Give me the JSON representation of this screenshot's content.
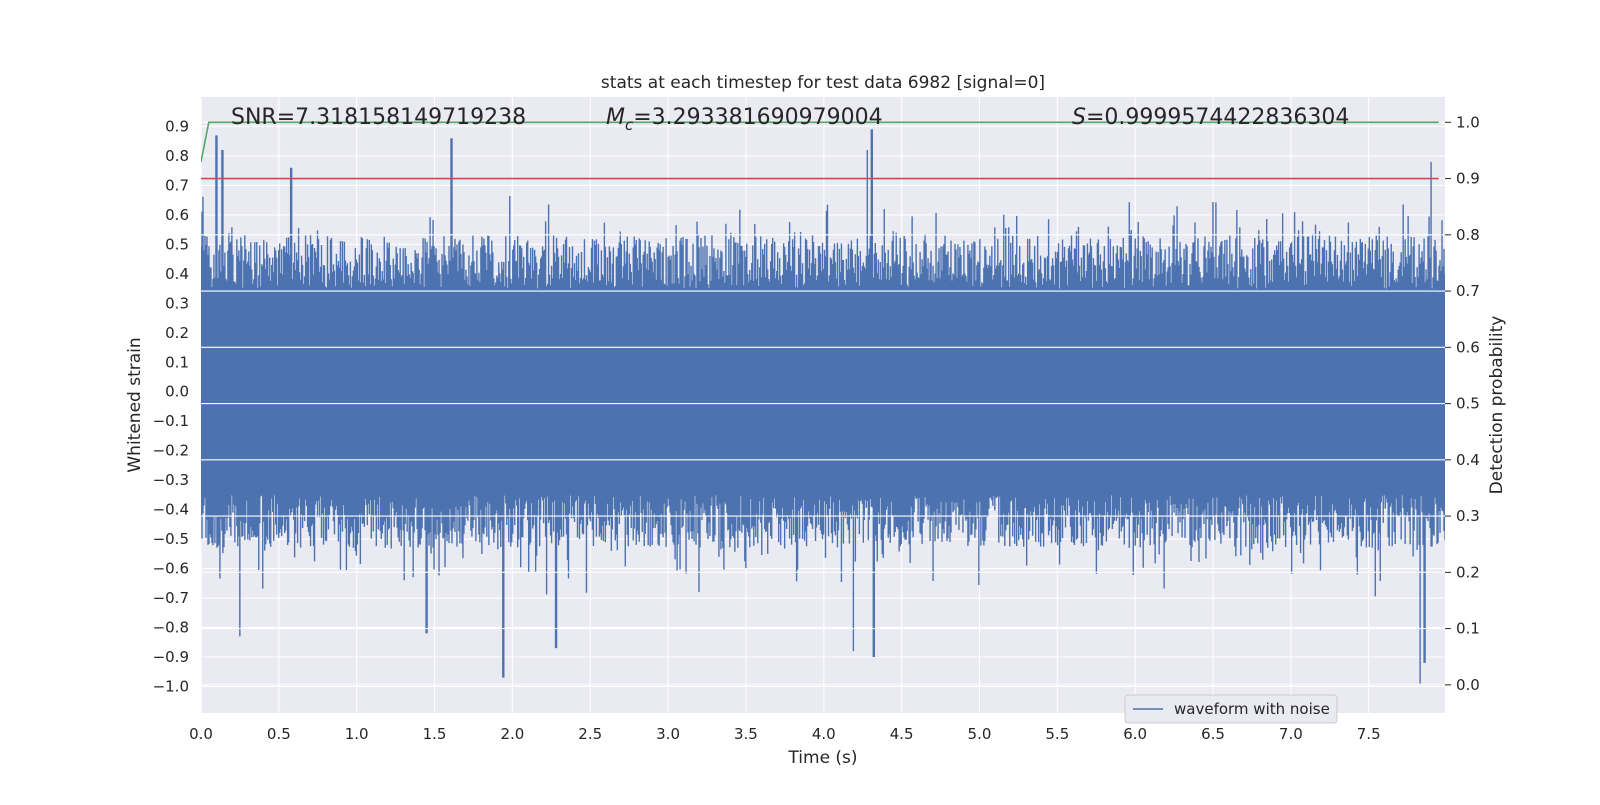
{
  "chart_data": {
    "type": "line",
    "title": "stats at each timestep for test data 6982 [signal=0]",
    "xlabel": "Time (s)",
    "ylabel": "Whitened strain",
    "ylabel_right": "Detection probability",
    "xlim": [
      0.0,
      7.99
    ],
    "ylim": [
      -1.09,
      1.0
    ],
    "ylim_right": [
      -0.05,
      1.045
    ],
    "xticks": [
      "0.0",
      "0.5",
      "1.0",
      "1.5",
      "2.0",
      "2.5",
      "3.0",
      "3.5",
      "4.0",
      "4.5",
      "5.0",
      "5.5",
      "6.0",
      "6.5",
      "7.0",
      "7.5"
    ],
    "yticks": [
      "0.9",
      "0.8",
      "0.7",
      "0.6",
      "0.5",
      "0.4",
      "0.3",
      "0.2",
      "0.1",
      "0.0",
      "−0.1",
      "−0.2",
      "−0.3",
      "−0.4",
      "−0.5",
      "−0.6",
      "−0.7",
      "−0.8",
      "−0.9",
      "−1.0"
    ],
    "yticks_right": [
      "1.0",
      "0.9",
      "0.8",
      "0.7",
      "0.6",
      "0.5",
      "0.4",
      "0.3",
      "0.2",
      "0.1",
      "0.0"
    ],
    "grid": true,
    "legend_position": "lower-right",
    "annotations": {
      "snr": "SNR=7.318158149719238",
      "mc_symbol": "M",
      "mc_sub": "c",
      "mc_value": "=3.293381690979004",
      "s_symbol": "S",
      "s_value": "=0.9999574422836304"
    },
    "series": [
      {
        "name": "waveform with noise",
        "axis": "left",
        "color": "#4c72b0",
        "description_peaks": [
          {
            "x": 0.1,
            "y": 0.87
          },
          {
            "x": 0.14,
            "y": 0.82
          },
          {
            "x": 0.58,
            "y": 0.76
          },
          {
            "x": 1.61,
            "y": 0.86
          },
          {
            "x": 4.31,
            "y": 0.89
          },
          {
            "x": 4.28,
            "y": 0.82
          },
          {
            "x": 7.9,
            "y": 0.78
          },
          {
            "x": 1.94,
            "y": -0.97
          },
          {
            "x": 7.83,
            "y": -0.99
          },
          {
            "x": 4.32,
            "y": -0.9
          },
          {
            "x": 4.19,
            "y": -0.88
          },
          {
            "x": 0.25,
            "y": -0.83
          },
          {
            "x": 2.28,
            "y": -0.87
          },
          {
            "x": 1.45,
            "y": -0.82
          },
          {
            "x": 7.86,
            "y": -0.92
          }
        ],
        "amplitude_core": 0.27
      },
      {
        "name": "",
        "axis": "right",
        "color": "#55a868",
        "x": [
          0.0,
          0.05,
          0.07,
          7.95
        ],
        "y": [
          0.93,
          1.0,
          1.0,
          1.0
        ]
      },
      {
        "name": "",
        "axis": "right",
        "color": "#c44e52",
        "x": [
          0.0,
          7.95
        ],
        "y": [
          0.9,
          0.9
        ]
      }
    ]
  }
}
